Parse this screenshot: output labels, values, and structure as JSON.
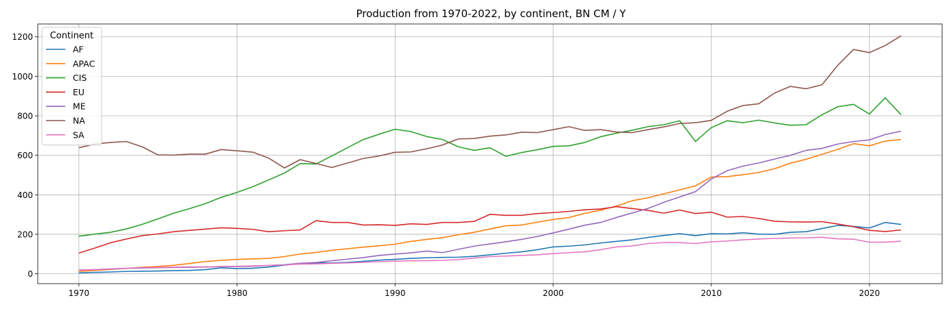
{
  "chart_data": {
    "type": "line",
    "title": "Production from 1970-2022, by continent, BN CM / Y",
    "xlabel": "",
    "ylabel": "",
    "xlim": [
      1967.4,
      2024.6
    ],
    "ylim": [
      -50,
      1265
    ],
    "xticks": [
      1970,
      1980,
      1990,
      2000,
      2010,
      2020
    ],
    "yticks": [
      0,
      200,
      400,
      600,
      800,
      1000,
      1200
    ],
    "grid": true,
    "legend": {
      "title": "Continent",
      "placement": "top-left"
    },
    "x": [
      1970,
      1971,
      1972,
      1973,
      1974,
      1975,
      1976,
      1977,
      1978,
      1979,
      1980,
      1981,
      1982,
      1983,
      1984,
      1985,
      1986,
      1987,
      1988,
      1989,
      1990,
      1991,
      1992,
      1993,
      1994,
      1995,
      1996,
      1997,
      1998,
      1999,
      2000,
      2001,
      2002,
      2003,
      2004,
      2005,
      2006,
      2007,
      2008,
      2009,
      2010,
      2011,
      2012,
      2013,
      2014,
      2015,
      2016,
      2017,
      2018,
      2019,
      2020,
      2021,
      2022
    ],
    "series": [
      {
        "name": "AF",
        "color": "#1f77b4",
        "values": [
          5,
          7,
          9,
          12,
          13,
          14,
          16,
          17,
          21,
          30,
          26,
          28,
          34,
          44,
          51,
          55,
          55,
          58,
          63,
          69,
          73,
          78,
          81,
          83,
          84,
          88,
          96,
          104,
          111,
          122,
          136,
          140,
          146,
          156,
          164,
          172,
          184,
          194,
          203,
          193,
          203,
          202,
          208,
          201,
          200,
          210,
          213,
          229,
          245,
          240,
          232,
          260,
          250
        ]
      },
      {
        "name": "APAC",
        "color": "#ff7f0e",
        "values": [
          12,
          17,
          22,
          27,
          33,
          37,
          43,
          52,
          62,
          68,
          73,
          75,
          78,
          87,
          100,
          108,
          119,
          127,
          135,
          142,
          150,
          164,
          174,
          183,
          198,
          210,
          227,
          243,
          247,
          261,
          275,
          285,
          306,
          322,
          343,
          370,
          385,
          405,
          425,
          445,
          490,
          492,
          502,
          513,
          532,
          560,
          580,
          605,
          630,
          659,
          648,
          672,
          680
        ]
      },
      {
        "name": "CIS",
        "color": "#2ca02c",
        "values": [
          190,
          201,
          210,
          227,
          250,
          278,
          307,
          330,
          355,
          387,
          412,
          441,
          475,
          510,
          558,
          556,
          597,
          639,
          680,
          707,
          732,
          720,
          695,
          680,
          643,
          625,
          638,
          595,
          614,
          628,
          645,
          648,
          665,
          694,
          712,
          727,
          745,
          755,
          775,
          670,
          740,
          775,
          765,
          778,
          764,
          752,
          755,
          805,
          846,
          858,
          809,
          891,
          806
        ]
      },
      {
        "name": "EU",
        "color": "#d62728",
        "values": [
          105,
          130,
          157,
          176,
          193,
          202,
          213,
          220,
          226,
          233,
          230,
          225,
          213,
          218,
          222,
          269,
          260,
          260,
          247,
          248,
          245,
          253,
          250,
          260,
          260,
          265,
          301,
          296,
          296,
          305,
          310,
          316,
          324,
          328,
          340,
          330,
          321,
          307,
          323,
          305,
          312,
          287,
          290,
          280,
          266,
          263,
          262,
          264,
          252,
          238,
          220,
          214,
          222
        ]
      },
      {
        "name": "ME",
        "color": "#9467bd",
        "values": [
          19,
          21,
          24,
          27,
          29,
          31,
          32,
          33,
          34,
          36,
          36,
          38,
          42,
          46,
          53,
          57,
          66,
          74,
          82,
          93,
          100,
          106,
          115,
          107,
          124,
          140,
          151,
          162,
          174,
          189,
          207,
          226,
          246,
          260,
          285,
          308,
          331,
          362,
          389,
          416,
          480,
          522,
          545,
          561,
          581,
          600,
          625,
          635,
          657,
          670,
          678,
          705,
          722
        ]
      },
      {
        "name": "NA",
        "color": "#8c564b",
        "values": [
          638,
          657,
          665,
          670,
          643,
          602,
          601,
          606,
          606,
          629,
          623,
          616,
          586,
          536,
          578,
          559,
          538,
          561,
          584,
          597,
          615,
          617,
          633,
          652,
          683,
          685,
          697,
          703,
          717,
          715,
          730,
          745,
          726,
          730,
          718,
          715,
          730,
          744,
          761,
          765,
          777,
          823,
          852,
          861,
          915,
          949,
          937,
          957,
          1056,
          1136,
          1120,
          1156,
          1205
        ]
      },
      {
        "name": "SA",
        "color": "#e377c2",
        "values": [
          18,
          21,
          25,
          28,
          31,
          32,
          34,
          35,
          35,
          37,
          38,
          40,
          42,
          45,
          49,
          50,
          53,
          55,
          58,
          61,
          64,
          66,
          66,
          68,
          72,
          79,
          87,
          90,
          93,
          96,
          102,
          107,
          111,
          122,
          136,
          141,
          153,
          158,
          158,
          153,
          162,
          166,
          172,
          176,
          179,
          181,
          182,
          185,
          177,
          175,
          160,
          160,
          165
        ]
      }
    ]
  }
}
